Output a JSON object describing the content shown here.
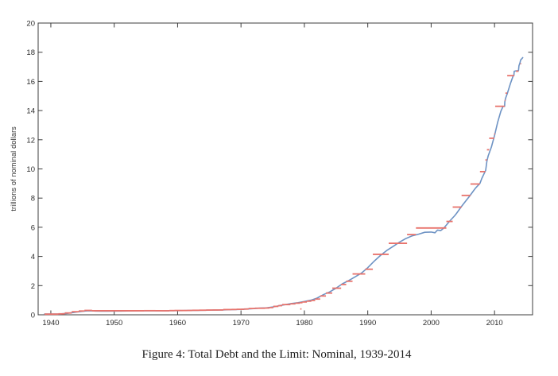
{
  "caption": "Figure 4: Total Debt and the Limit: Nominal, 1939-2014",
  "chart_data": {
    "type": "line",
    "title": "",
    "xlabel": "",
    "ylabel": "trillions of nominal dollars",
    "xlim": [
      1938,
      2016
    ],
    "ylim": [
      0,
      20
    ],
    "x_ticks": [
      1940,
      1950,
      1960,
      1970,
      1980,
      1990,
      2000,
      2010
    ],
    "y_ticks": [
      0,
      2,
      4,
      6,
      8,
      10,
      12,
      14,
      16,
      18,
      20
    ],
    "grid": false,
    "legend_position": "none",
    "axis_color": "#3d3d3d",
    "series": [
      {
        "name": "total-debt",
        "type": "line",
        "color": "#6E93C4",
        "points": [
          [
            1939,
            0.048
          ],
          [
            1940,
            0.051
          ],
          [
            1941,
            0.055
          ],
          [
            1941.5,
            0.06
          ],
          [
            1942,
            0.075
          ],
          [
            1942.5,
            0.095
          ],
          [
            1943,
            0.125
          ],
          [
            1943.5,
            0.155
          ],
          [
            1944,
            0.185
          ],
          [
            1944.5,
            0.212
          ],
          [
            1945,
            0.238
          ],
          [
            1945.5,
            0.26
          ],
          [
            1946,
            0.271
          ],
          [
            1946.6,
            0.266
          ],
          [
            1947,
            0.258
          ],
          [
            1948,
            0.252
          ],
          [
            1949,
            0.253
          ],
          [
            1950,
            0.257
          ],
          [
            1951,
            0.255
          ],
          [
            1952,
            0.259
          ],
          [
            1953,
            0.266
          ],
          [
            1954,
            0.271
          ],
          [
            1955,
            0.274
          ],
          [
            1956,
            0.273
          ],
          [
            1957,
            0.271
          ],
          [
            1958,
            0.276
          ],
          [
            1959,
            0.285
          ],
          [
            1960,
            0.286
          ],
          [
            1961,
            0.289
          ],
          [
            1962,
            0.298
          ],
          [
            1963,
            0.306
          ],
          [
            1964,
            0.312
          ],
          [
            1965,
            0.317
          ],
          [
            1966,
            0.32
          ],
          [
            1967,
            0.326
          ],
          [
            1968,
            0.348
          ],
          [
            1969,
            0.354
          ],
          [
            1970,
            0.371
          ],
          [
            1971,
            0.398
          ],
          [
            1972,
            0.427
          ],
          [
            1973,
            0.458
          ],
          [
            1974,
            0.475
          ],
          [
            1975,
            0.533
          ],
          [
            1976,
            0.62
          ],
          [
            1977,
            0.699
          ],
          [
            1978,
            0.772
          ],
          [
            1979,
            0.827
          ],
          [
            1980,
            0.908
          ],
          [
            1981,
            0.998
          ],
          [
            1982,
            1.142
          ],
          [
            1983,
            1.377
          ],
          [
            1984,
            1.572
          ],
          [
            1985,
            1.823
          ],
          [
            1986,
            2.125
          ],
          [
            1987,
            2.35
          ],
          [
            1988,
            2.602
          ],
          [
            1989,
            2.857
          ],
          [
            1990,
            3.233
          ],
          [
            1991,
            3.665
          ],
          [
            1992,
            4.065
          ],
          [
            1993,
            4.411
          ],
          [
            1994,
            4.693
          ],
          [
            1995,
            4.974
          ],
          [
            1996,
            5.225
          ],
          [
            1997,
            5.413
          ],
          [
            1998,
            5.526
          ],
          [
            1999,
            5.656
          ],
          [
            2000,
            5.674
          ],
          [
            2000.6,
            5.622
          ],
          [
            2001,
            5.807
          ],
          [
            2001.5,
            5.77
          ],
          [
            2002,
            5.943
          ],
          [
            2002.5,
            6.2
          ],
          [
            2003,
            6.46
          ],
          [
            2003.7,
            6.783
          ],
          [
            2004,
            6.95
          ],
          [
            2004.7,
            7.379
          ],
          [
            2005,
            7.55
          ],
          [
            2005.7,
            7.933
          ],
          [
            2006,
            8.1
          ],
          [
            2006.7,
            8.507
          ],
          [
            2007,
            8.68
          ],
          [
            2007.7,
            9.008
          ],
          [
            2008,
            9.35
          ],
          [
            2008.6,
            9.9
          ],
          [
            2008.8,
            10.55
          ],
          [
            2009,
            10.9
          ],
          [
            2009.5,
            11.5
          ],
          [
            2010,
            12.3
          ],
          [
            2010.5,
            13.2
          ],
          [
            2011,
            13.95
          ],
          [
            2011.35,
            14.29
          ],
          [
            2011.58,
            14.29
          ],
          [
            2011.62,
            14.6
          ],
          [
            2011.75,
            14.85
          ],
          [
            2012,
            15.15
          ],
          [
            2012.5,
            15.85
          ],
          [
            2012.95,
            16.39
          ],
          [
            2013.05,
            16.39
          ],
          [
            2013.1,
            16.69
          ],
          [
            2013.35,
            16.72
          ],
          [
            2013.78,
            16.74
          ],
          [
            2013.85,
            17.08
          ],
          [
            2014,
            17.26
          ],
          [
            2014.12,
            17.47
          ],
          [
            2014.3,
            17.55
          ],
          [
            2014.45,
            17.63
          ]
        ]
      },
      {
        "name": "debt-limit",
        "type": "step-segments",
        "color": "#E8736C",
        "segments": [
          [
            1939,
            1941.2,
            0.045
          ],
          [
            1941.2,
            1942.2,
            0.065
          ],
          [
            1942.2,
            1943.3,
            0.125
          ],
          [
            1943.3,
            1944.4,
            0.21
          ],
          [
            1944.4,
            1945.3,
            0.26
          ],
          [
            1945.3,
            1946.5,
            0.3
          ],
          [
            1946.5,
            1954.7,
            0.275
          ],
          [
            1954.7,
            1956.5,
            0.281
          ],
          [
            1956.5,
            1957.5,
            0.278
          ],
          [
            1957.5,
            1958.7,
            0.275
          ],
          [
            1958.7,
            1959.5,
            0.288
          ],
          [
            1959.5,
            1960.5,
            0.295
          ],
          [
            1960.5,
            1961.5,
            0.293
          ],
          [
            1961.5,
            1962.3,
            0.298
          ],
          [
            1962.3,
            1963.4,
            0.308
          ],
          [
            1963.4,
            1964.5,
            0.315
          ],
          [
            1964.5,
            1965.5,
            0.324
          ],
          [
            1965.5,
            1966.5,
            0.328
          ],
          [
            1966.5,
            1967.2,
            0.33
          ],
          [
            1967.2,
            1968.5,
            0.358
          ],
          [
            1968.5,
            1969.3,
            0.365
          ],
          [
            1969.3,
            1970.5,
            0.377
          ],
          [
            1970.5,
            1971.2,
            0.395
          ],
          [
            1971.2,
            1972.2,
            0.43
          ],
          [
            1972.2,
            1973.8,
            0.45
          ],
          [
            1973.8,
            1974.5,
            0.465
          ],
          [
            1974.5,
            1975.1,
            0.495
          ],
          [
            1975.1,
            1975.9,
            0.577
          ],
          [
            1975.9,
            1976.5,
            0.627
          ],
          [
            1976.5,
            1977.8,
            0.7
          ],
          [
            1977.8,
            1978.6,
            0.752
          ],
          [
            1978.6,
            1979.3,
            0.798
          ],
          [
            1979.3,
            1979.7,
            0.83
          ],
          [
            1979.35,
            1979.55,
            0.4
          ],
          [
            1979.7,
            1980.4,
            0.879
          ],
          [
            1980.4,
            1981.1,
            0.935
          ],
          [
            1981.1,
            1981.7,
            0.985
          ],
          [
            1981.7,
            1982.5,
            1.08
          ],
          [
            1982.5,
            1983.4,
            1.29
          ],
          [
            1983.4,
            1984.4,
            1.49
          ],
          [
            1984.4,
            1985.8,
            1.823
          ],
          [
            1985.8,
            1986.6,
            2.079
          ],
          [
            1986.6,
            1987.6,
            2.3
          ],
          [
            1987.6,
            1989.6,
            2.8
          ],
          [
            1989.6,
            1990.8,
            3.123
          ],
          [
            1990.8,
            1993.3,
            4.145
          ],
          [
            1993.3,
            1996.2,
            4.9
          ],
          [
            1996.2,
            1997.6,
            5.5
          ],
          [
            1997.6,
            2002.4,
            5.95
          ],
          [
            2002.4,
            2003.4,
            6.4
          ],
          [
            2003.4,
            2004.8,
            7.384
          ],
          [
            2004.8,
            2006.2,
            8.184
          ],
          [
            2006.2,
            2007.7,
            8.965
          ],
          [
            2007.7,
            2008.55,
            9.815
          ],
          [
            2008.55,
            2008.8,
            10.615
          ],
          [
            2008.8,
            2009.15,
            11.315
          ],
          [
            2009.15,
            2009.95,
            12.104
          ],
          [
            2009.95,
            2010.1,
            12.394
          ],
          [
            2010.1,
            2011.6,
            14.294
          ],
          [
            2011.6,
            2011.72,
            14.694
          ],
          [
            2011.72,
            2012.0,
            15.194
          ],
          [
            2012.0,
            2013.1,
            16.394
          ],
          [
            2013.38,
            2013.79,
            16.699
          ],
          [
            2014.08,
            2014.2,
            17.212
          ]
        ]
      }
    ]
  }
}
